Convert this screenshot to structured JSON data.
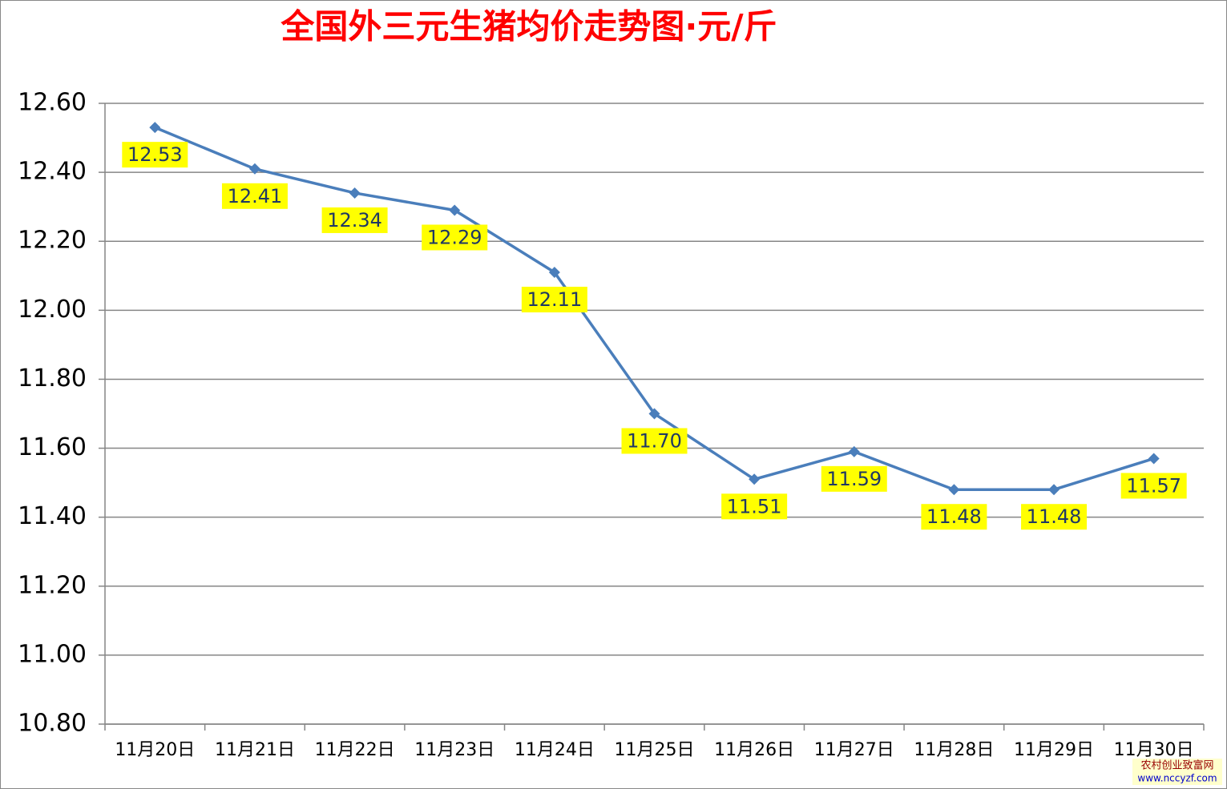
{
  "chart_data": {
    "type": "line",
    "title": "全国外三元生猪均价走势图·元/斤",
    "categories": [
      "11月20日",
      "11月21日",
      "11月22日",
      "11月23日",
      "11月24日",
      "11月25日",
      "11月26日",
      "11月27日",
      "11月28日",
      "11月29日",
      "11月30日"
    ],
    "values": [
      12.53,
      12.41,
      12.34,
      12.29,
      12.11,
      11.7,
      11.51,
      11.59,
      11.48,
      11.48,
      11.57
    ],
    "value_labels": [
      "12.53",
      "12.41",
      "12.34",
      "12.29",
      "12.11",
      "11.70",
      "11.51",
      "11.59",
      "11.48",
      "11.48",
      "11.57"
    ],
    "color": "#4a7ebb",
    "ylim": [
      10.8,
      12.6
    ],
    "yticks": [
      {
        "value": 10.8,
        "label": "10.80"
      },
      {
        "value": 11,
        "label": "11.00"
      },
      {
        "value": 11.2,
        "label": "11.20"
      },
      {
        "value": 11.4,
        "label": "11.40"
      },
      {
        "value": 11.6,
        "label": "11.60"
      },
      {
        "value": 11.8,
        "label": "11.80"
      },
      {
        "value": 12,
        "label": "12.00"
      },
      {
        "value": 12.2,
        "label": "12.20"
      },
      {
        "value": 12.4,
        "label": "12.40"
      },
      {
        "value": 12.6,
        "label": "12.60"
      }
    ],
    "grid": true
  },
  "watermark": [
    "农村创业致富网",
    "www.nccyzf.com"
  ]
}
